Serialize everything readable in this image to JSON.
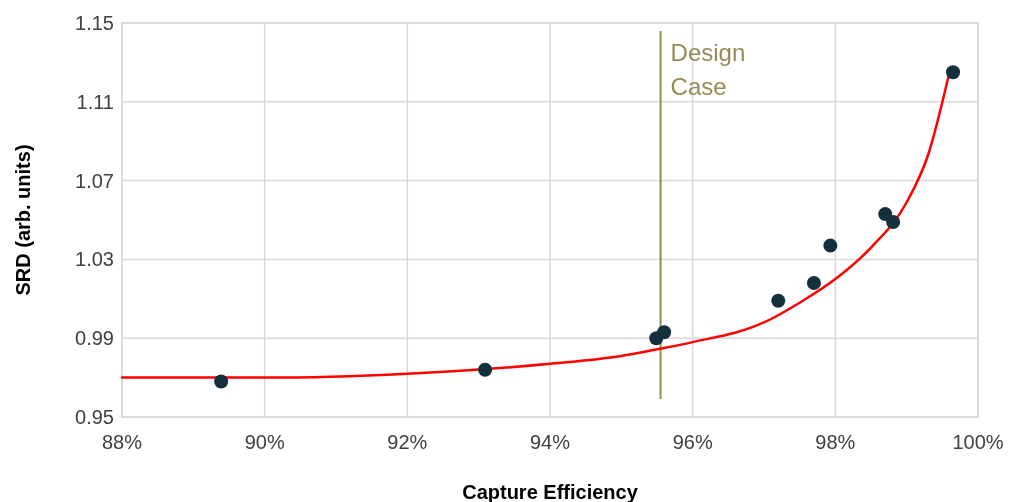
{
  "chart_data": {
    "type": "scatter",
    "xlabel": "Capture Efficiency",
    "ylabel": "SRD (arb. units)",
    "xlim": [
      88,
      100
    ],
    "xticks": [
      {
        "value": 88,
        "label": "88%"
      },
      {
        "value": 90,
        "label": "90%"
      },
      {
        "value": 92,
        "label": "92%"
      },
      {
        "value": 94,
        "label": "94%"
      },
      {
        "value": 96,
        "label": "96%"
      },
      {
        "value": 98,
        "label": "98%"
      },
      {
        "value": 100,
        "label": "100%"
      }
    ],
    "ylim": [
      0.95,
      1.15
    ],
    "yticks": [
      0.95,
      0.99,
      1.03,
      1.07,
      1.11,
      1.15
    ],
    "grid": true,
    "series": [
      {
        "color": "#13303c",
        "marker": "circle",
        "x": [
          89.39,
          93.09,
          95.49,
          95.6,
          97.2,
          97.7,
          97.93,
          98.7,
          98.81,
          99.65
        ],
        "values": [
          0.968,
          0.974,
          0.99,
          0.993,
          1.009,
          1.018,
          1.037,
          1.053,
          1.049,
          1.125
        ]
      },
      {
        "type": "line",
        "color": "#ff0000",
        "marker": "none",
        "line_style": "solid",
        "x": [
          88,
          90,
          92,
          94,
          95,
          95.6,
          96,
          97,
          97.5,
          98,
          98.5,
          99,
          99.3,
          99.6
        ],
        "values": [
          0.97,
          0.97,
          0.972,
          0.977,
          0.981,
          0.985,
          0.988,
          0.998,
          1.008,
          1.02,
          1.036,
          1.059,
          1.083,
          1.125
        ]
      }
    ],
    "ref_lines": [
      {
        "axis": "x",
        "value": 95.55,
        "label": "Design Case",
        "color": "#948a54"
      }
    ]
  }
}
